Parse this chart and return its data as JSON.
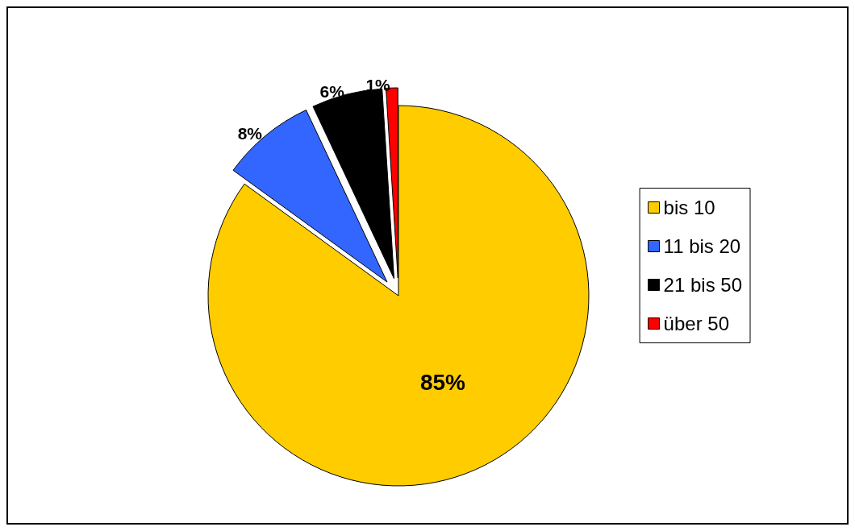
{
  "chart_data": {
    "type": "pie",
    "categories": [
      "bis 10",
      "11 bis 20",
      "21 bis 50",
      "über 50"
    ],
    "values": [
      85,
      8,
      6,
      1
    ],
    "value_labels": [
      "85%",
      "8%",
      "6%",
      "1%"
    ],
    "colors": [
      "#ffcc00",
      "#3366ff",
      "#000000",
      "#ff0000"
    ],
    "legend": "right"
  }
}
